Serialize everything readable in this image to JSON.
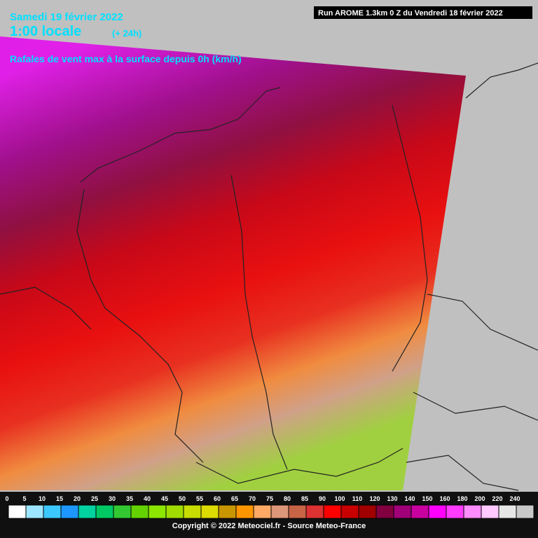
{
  "header": {
    "date": "Samedi 19 février 2022",
    "time": "1:00 locale",
    "lead": "(+ 24h)",
    "run": "Run AROME 1.3km 0 Z du Vendredi 18 février 2022",
    "parameter": "Rafales de vent max à la surface depuis 0h (km/h)"
  },
  "legend": {
    "labels": [
      0,
      5,
      10,
      15,
      20,
      25,
      30,
      35,
      40,
      45,
      50,
      55,
      60,
      65,
      70,
      75,
      80,
      85,
      90,
      100,
      110,
      120,
      130,
      140,
      150,
      160,
      180,
      200,
      220,
      240
    ],
    "colors": [
      "#ffffff",
      "#9ee6ff",
      "#3cc8ff",
      "#1e96ff",
      "#00d2a0",
      "#00c864",
      "#32c832",
      "#64d200",
      "#8ce600",
      "#a0dc00",
      "#c8dc00",
      "#dcdc00",
      "#c89600",
      "#ff9600",
      "#ffaa64",
      "#dc9678",
      "#c86446",
      "#dc3232",
      "#ff0000",
      "#c80000",
      "#a00000",
      "#820040",
      "#a00078",
      "#c800a0",
      "#ff00ff",
      "#ff3cff",
      "#ff8cff",
      "#ffc8ff",
      "#e6e6e6",
      "#c8c8c8"
    ]
  },
  "footer": {
    "copyright": "Copyright © 2022 Meteociel.fr - Source Meteo-France"
  }
}
